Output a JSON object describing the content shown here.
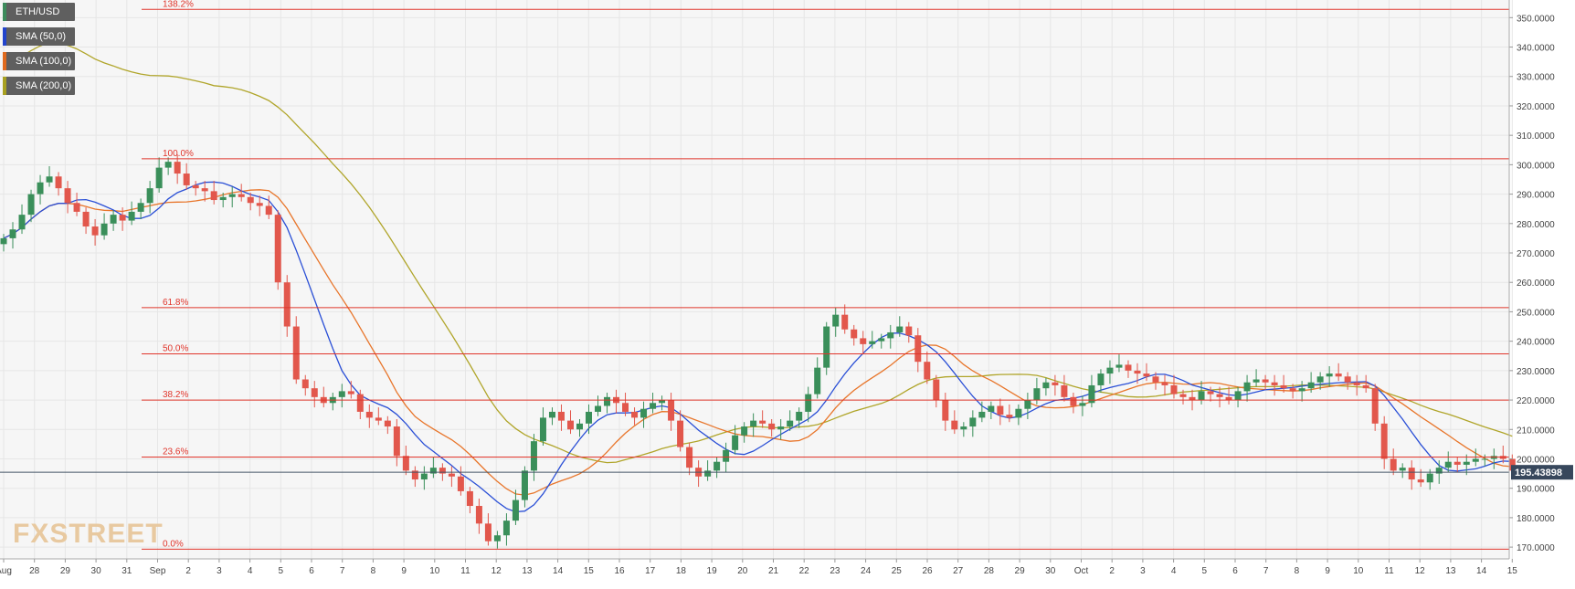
{
  "chart_data": {
    "type": "candlestick",
    "symbol": "ETH/USD",
    "ylim": [
      166,
      356
    ],
    "y_ticks": [
      {
        "value": 350,
        "label": "350.0000"
      },
      {
        "value": 340,
        "label": "340.0000"
      },
      {
        "value": 330,
        "label": "330.0000"
      },
      {
        "value": 320,
        "label": "320.0000"
      },
      {
        "value": 310,
        "label": "310.0000"
      },
      {
        "value": 300,
        "label": "300.0000"
      },
      {
        "value": 290,
        "label": "290.0000"
      },
      {
        "value": 280,
        "label": "280.0000"
      },
      {
        "value": 270,
        "label": "270.0000"
      },
      {
        "value": 260,
        "label": "260.0000"
      },
      {
        "value": 250,
        "label": "250.0000"
      },
      {
        "value": 240,
        "label": "240.0000"
      },
      {
        "value": 230,
        "label": "230.0000"
      },
      {
        "value": 220,
        "label": "220.0000"
      },
      {
        "value": 210,
        "label": "210.0000"
      },
      {
        "value": 200,
        "label": "200.0000"
      },
      {
        "value": 190,
        "label": "190.0000"
      },
      {
        "value": 180,
        "label": "180.0000"
      },
      {
        "value": 170,
        "label": "170.0000"
      }
    ],
    "x_ticks": [
      {
        "idx": 0,
        "label": "Aug"
      },
      {
        "idx": 1,
        "label": "28"
      },
      {
        "idx": 2,
        "label": "29"
      },
      {
        "idx": 3,
        "label": "30"
      },
      {
        "idx": 4,
        "label": "31"
      },
      {
        "idx": 5,
        "label": "Sep"
      },
      {
        "idx": 6,
        "label": "2"
      },
      {
        "idx": 7,
        "label": "3"
      },
      {
        "idx": 8,
        "label": "4"
      },
      {
        "idx": 9,
        "label": "5"
      },
      {
        "idx": 10,
        "label": "6"
      },
      {
        "idx": 11,
        "label": "7"
      },
      {
        "idx": 12,
        "label": "8"
      },
      {
        "idx": 13,
        "label": "9"
      },
      {
        "idx": 14,
        "label": "10"
      },
      {
        "idx": 15,
        "label": "11"
      },
      {
        "idx": 16,
        "label": "12"
      },
      {
        "idx": 17,
        "label": "13"
      },
      {
        "idx": 18,
        "label": "14"
      },
      {
        "idx": 19,
        "label": "15"
      },
      {
        "idx": 20,
        "label": "16"
      },
      {
        "idx": 21,
        "label": "17"
      },
      {
        "idx": 22,
        "label": "18"
      },
      {
        "idx": 23,
        "label": "19"
      },
      {
        "idx": 24,
        "label": "20"
      },
      {
        "idx": 25,
        "label": "21"
      },
      {
        "idx": 26,
        "label": "22"
      },
      {
        "idx": 27,
        "label": "23"
      },
      {
        "idx": 28,
        "label": "24"
      },
      {
        "idx": 29,
        "label": "25"
      },
      {
        "idx": 30,
        "label": "26"
      },
      {
        "idx": 31,
        "label": "27"
      },
      {
        "idx": 32,
        "label": "28"
      },
      {
        "idx": 33,
        "label": "29"
      },
      {
        "idx": 34,
        "label": "30"
      },
      {
        "idx": 35,
        "label": "Oct"
      },
      {
        "idx": 36,
        "label": "2"
      },
      {
        "idx": 37,
        "label": "3"
      },
      {
        "idx": 38,
        "label": "4"
      },
      {
        "idx": 39,
        "label": "5"
      },
      {
        "idx": 40,
        "label": "6"
      },
      {
        "idx": 41,
        "label": "7"
      },
      {
        "idx": 42,
        "label": "8"
      },
      {
        "idx": 43,
        "label": "9"
      },
      {
        "idx": 44,
        "label": "10"
      },
      {
        "idx": 45,
        "label": "11"
      },
      {
        "idx": 46,
        "label": "12"
      },
      {
        "idx": 47,
        "label": "13"
      },
      {
        "idx": 48,
        "label": "14"
      },
      {
        "idx": 49,
        "label": "15"
      }
    ],
    "fib_levels": [
      {
        "label": "138.2%",
        "value": 352.8
      },
      {
        "label": "100.0%",
        "value": 302.0
      },
      {
        "label": "61.8%",
        "value": 251.4
      },
      {
        "label": "50.0%",
        "value": 235.7
      },
      {
        "label": "38.2%",
        "value": 220.0
      },
      {
        "label": "23.6%",
        "value": 200.6
      },
      {
        "label": "0.0%",
        "value": 169.3
      }
    ],
    "current_price": {
      "value": 195.43898,
      "label": "195.43898"
    },
    "legend": [
      {
        "label": "ETH/USD",
        "color": "#3d8b5c"
      },
      {
        "label": "SMA (50,0)",
        "color": "#2244cc"
      },
      {
        "label": "SMA (100,0)",
        "color": "#e06a1e"
      },
      {
        "label": "SMA (200,0)",
        "color": "#a8a020"
      }
    ],
    "colors": {
      "up": "#3a8f5a",
      "down": "#e2574c",
      "fib": "#e0352b",
      "sma50": "#2a4fd6",
      "sma100": "#e8752a",
      "sma200": "#b0a52a",
      "price_line": "#445566"
    },
    "closes": [
      275,
      278,
      283,
      290,
      294,
      296,
      292,
      287,
      284,
      279,
      276,
      280,
      283,
      281,
      284,
      287,
      292,
      299,
      301,
      297,
      293,
      292,
      291,
      288,
      289,
      290,
      289,
      287,
      286,
      283,
      260,
      245,
      227,
      224,
      221,
      219,
      221,
      223,
      222,
      216,
      214,
      213,
      211,
      201,
      196,
      193,
      195,
      197,
      195,
      194,
      189,
      184,
      178,
      172,
      174,
      179,
      186,
      196,
      206,
      214,
      216,
      213,
      210,
      212,
      216,
      218,
      221,
      219,
      216,
      214,
      217,
      219,
      220,
      213,
      204,
      197,
      194,
      196,
      199,
      203,
      208,
      211,
      213,
      212,
      210,
      211,
      213,
      216,
      222,
      231,
      245,
      249,
      244,
      241,
      239,
      240,
      241,
      243,
      245,
      242,
      233,
      227,
      220,
      213,
      210,
      211,
      214,
      216,
      218,
      215,
      214,
      217,
      220,
      224,
      226,
      225,
      221,
      218,
      219,
      225,
      229,
      231,
      232,
      230,
      229,
      228,
      226,
      225,
      222,
      221,
      220,
      223,
      222,
      221,
      220,
      223,
      226,
      227,
      226,
      225,
      224,
      223,
      224,
      226,
      228,
      229,
      228,
      226,
      225,
      224,
      212,
      200,
      196,
      197,
      193,
      192,
      195,
      197,
      199,
      198,
      199,
      200,
      200,
      201,
      200,
      196
    ]
  }
}
